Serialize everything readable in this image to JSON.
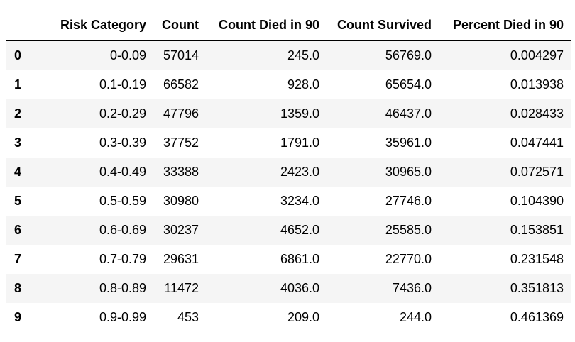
{
  "table": {
    "headers": {
      "index": "",
      "risk_category": "Risk Category",
      "count": "Count",
      "count_died": "Count Died in 90",
      "count_survived": "Count Survived",
      "percent_died": "Percent Died in 90"
    },
    "rows": [
      {
        "index": "0",
        "risk_category": "0-0.09",
        "count": "57014",
        "count_died": "245.0",
        "count_survived": "56769.0",
        "percent_died": "0.004297"
      },
      {
        "index": "1",
        "risk_category": "0.1-0.19",
        "count": "66582",
        "count_died": "928.0",
        "count_survived": "65654.0",
        "percent_died": "0.013938"
      },
      {
        "index": "2",
        "risk_category": "0.2-0.29",
        "count": "47796",
        "count_died": "1359.0",
        "count_survived": "46437.0",
        "percent_died": "0.028433"
      },
      {
        "index": "3",
        "risk_category": "0.3-0.39",
        "count": "37752",
        "count_died": "1791.0",
        "count_survived": "35961.0",
        "percent_died": "0.047441"
      },
      {
        "index": "4",
        "risk_category": "0.4-0.49",
        "count": "33388",
        "count_died": "2423.0",
        "count_survived": "30965.0",
        "percent_died": "0.072571"
      },
      {
        "index": "5",
        "risk_category": "0.5-0.59",
        "count": "30980",
        "count_died": "3234.0",
        "count_survived": "27746.0",
        "percent_died": "0.104390"
      },
      {
        "index": "6",
        "risk_category": "0.6-0.69",
        "count": "30237",
        "count_died": "4652.0",
        "count_survived": "25585.0",
        "percent_died": "0.153851"
      },
      {
        "index": "7",
        "risk_category": "0.7-0.79",
        "count": "29631",
        "count_died": "6861.0",
        "count_survived": "22770.0",
        "percent_died": "0.231548"
      },
      {
        "index": "8",
        "risk_category": "0.8-0.89",
        "count": "11472",
        "count_died": "4036.0",
        "count_survived": "7436.0",
        "percent_died": "0.351813"
      },
      {
        "index": "9",
        "risk_category": "0.9-0.99",
        "count": "453",
        "count_died": "209.0",
        "count_survived": "244.0",
        "percent_died": "0.461369"
      }
    ]
  }
}
